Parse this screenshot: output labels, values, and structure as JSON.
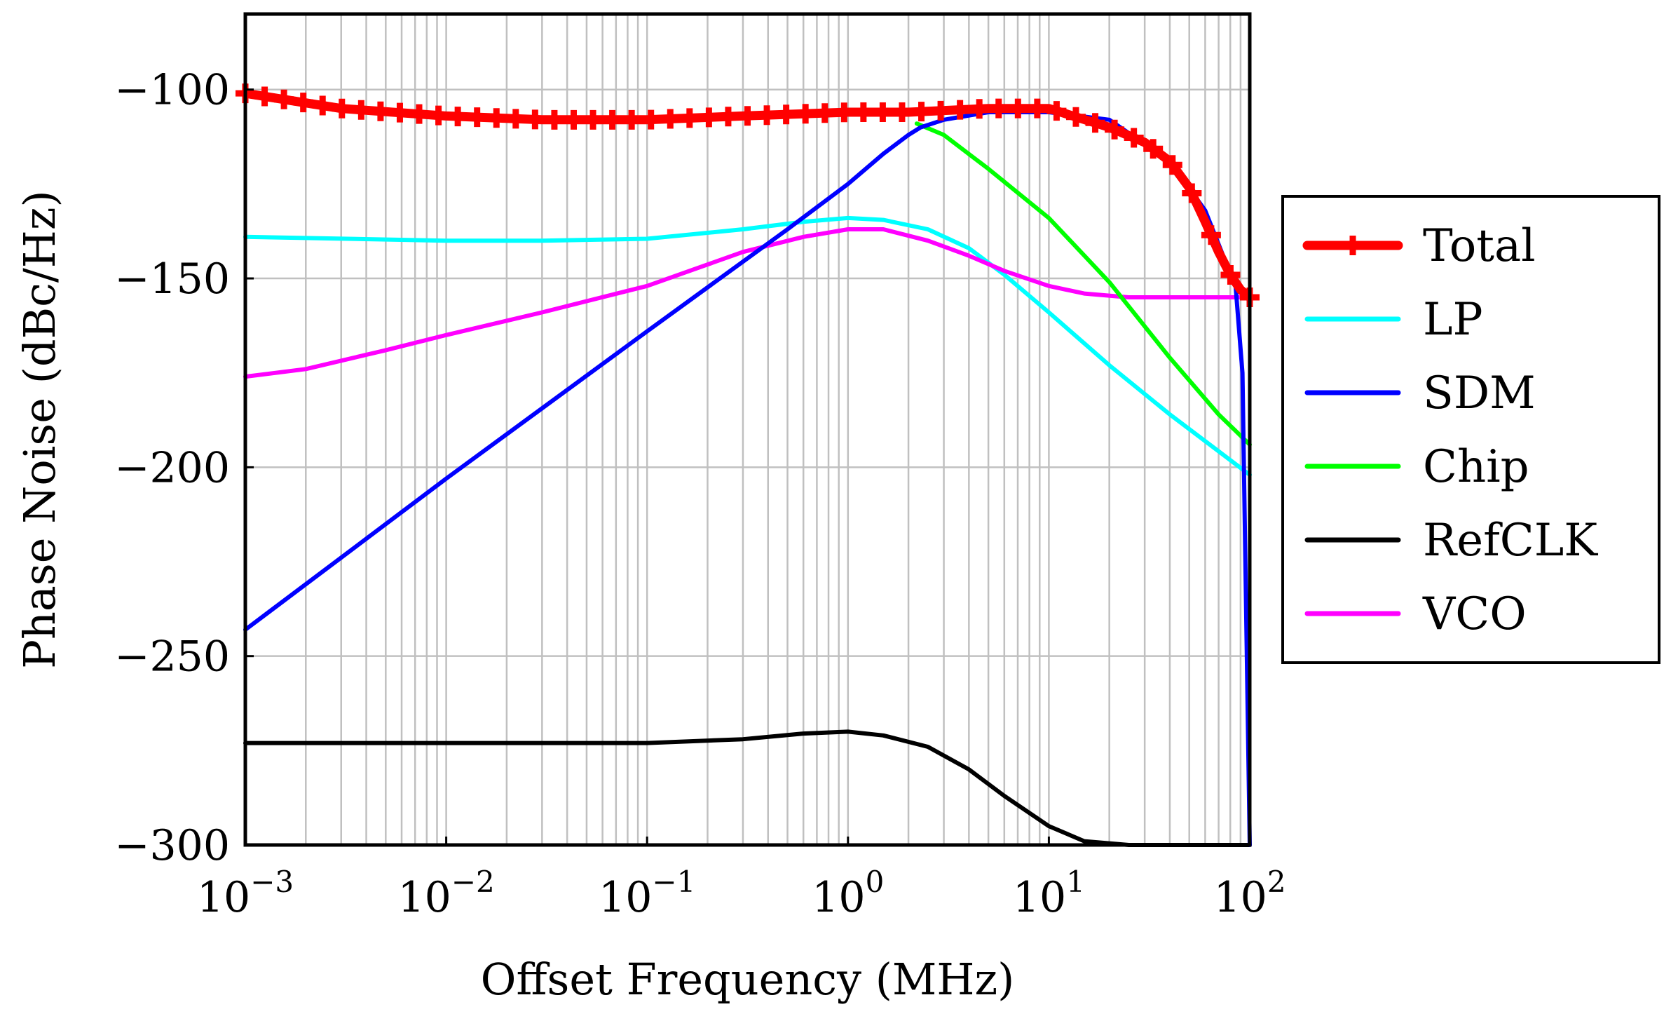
{
  "chart_data": {
    "type": "line",
    "title": "",
    "xlabel": "Offset Frequency (MHz)",
    "ylabel": "Phase Noise (dBc/Hz)",
    "xscale": "log",
    "xlim": [
      0.001,
      100
    ],
    "ylim": [
      -300,
      -80
    ],
    "grid": true,
    "legend_position": "right",
    "x_ticks": [
      {
        "base": "10",
        "exp": "−3"
      },
      {
        "base": "10",
        "exp": "−2"
      },
      {
        "base": "10",
        "exp": "−1"
      },
      {
        "base": "10",
        "exp": "0"
      },
      {
        "base": "10",
        "exp": "1"
      },
      {
        "base": "10",
        "exp": "2"
      }
    ],
    "y_ticks": [
      "−300",
      "−250",
      "−200",
      "−150",
      "−100"
    ],
    "series": [
      {
        "name": "Total",
        "color": "#ff0000",
        "marker": "plus",
        "x": [
          0.001,
          0.003,
          0.01,
          0.03,
          0.1,
          0.3,
          1,
          2,
          5,
          10,
          20,
          30,
          40,
          50,
          60,
          70,
          80,
          90,
          100
        ],
        "y": [
          -101,
          -105,
          -107,
          -108,
          -108,
          -107,
          -106,
          -106,
          -105,
          -105,
          -110,
          -114,
          -119,
          -126,
          -135,
          -143,
          -149,
          -153,
          -155
        ]
      },
      {
        "name": "LP",
        "color": "#00ffff",
        "marker": "none",
        "x": [
          0.001,
          0.01,
          0.03,
          0.1,
          0.3,
          0.6,
          1,
          1.5,
          2.5,
          4,
          6,
          10,
          20,
          40,
          100
        ],
        "y": [
          -139,
          -140,
          -140,
          -139.5,
          -137,
          -135,
          -134,
          -134.5,
          -137,
          -142,
          -149,
          -159,
          -173,
          -186,
          -202
        ]
      },
      {
        "name": "SDM",
        "color": "#0000ff",
        "marker": "none",
        "x": [
          0.001,
          0.01,
          0.1,
          0.5,
          1,
          1.5,
          2,
          2.3,
          3,
          5,
          10,
          20,
          40,
          60,
          75,
          85,
          92,
          100
        ],
        "y": [
          -243,
          -203,
          -164,
          -137,
          -125,
          -117,
          -112,
          -110,
          -108,
          -106,
          -106,
          -108,
          -119,
          -132,
          -145,
          -152,
          -175,
          -300
        ]
      },
      {
        "name": "Chip",
        "color": "#00ff00",
        "marker": "none",
        "x": [
          2.2,
          3,
          5,
          10,
          20,
          40,
          70,
          100
        ],
        "y": [
          -109,
          -112,
          -121,
          -134,
          -151,
          -171,
          -186,
          -194
        ]
      },
      {
        "name": "RefCLK",
        "color": "#000000",
        "marker": "none",
        "x": [
          0.001,
          0.01,
          0.1,
          0.3,
          0.6,
          1,
          1.5,
          2.5,
          4,
          6,
          10,
          15,
          25,
          50,
          100
        ],
        "y": [
          -273,
          -273,
          -273,
          -272,
          -270.5,
          -270,
          -271,
          -274,
          -280,
          -287,
          -295,
          -299,
          -300,
          -300,
          -300
        ]
      },
      {
        "name": "VCO",
        "color": "#ff00ff",
        "marker": "none",
        "x": [
          0.001,
          0.002,
          0.005,
          0.01,
          0.03,
          0.1,
          0.3,
          0.6,
          1,
          1.5,
          2.5,
          4,
          6,
          10,
          15,
          25,
          50,
          100
        ],
        "y": [
          -176,
          -174,
          -169,
          -165,
          -159,
          -152,
          -143,
          -139,
          -137,
          -137,
          -140,
          -144,
          -148,
          -152,
          -154,
          -155,
          -155,
          -155
        ]
      }
    ]
  }
}
